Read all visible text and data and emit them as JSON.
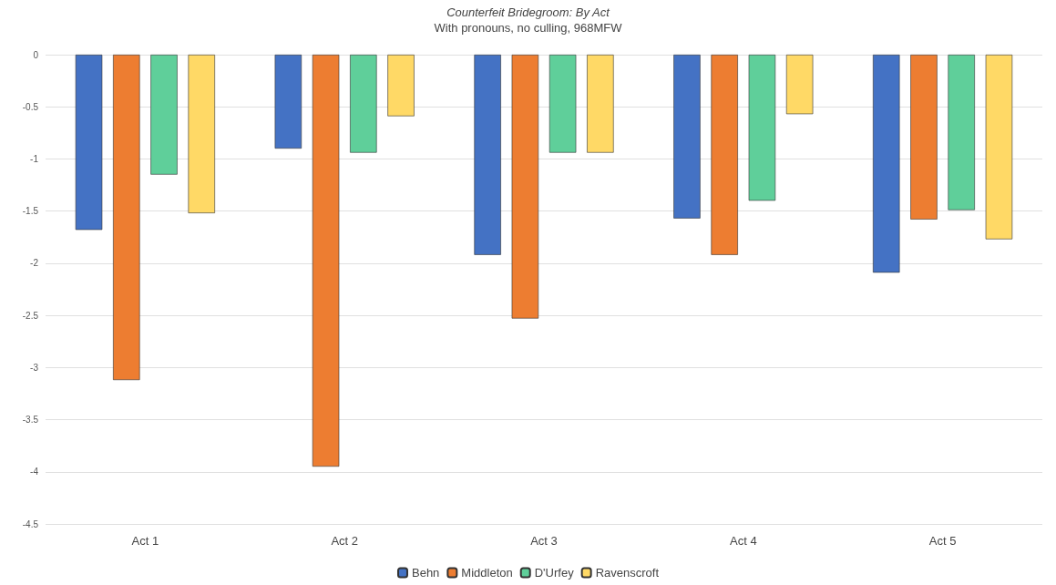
{
  "chart_data": {
    "type": "bar",
    "title": "Counterfeit Bridegroom: By Act",
    "subtitle": "With pronouns, no culling, 968MFW",
    "categories": [
      "Act 1",
      "Act 2",
      "Act 3",
      "Act 4",
      "Act 5"
    ],
    "series": [
      {
        "name": "Behn",
        "color": "#4472c4",
        "values": [
          -1.68,
          -0.9,
          -1.92,
          -1.57,
          -2.09
        ]
      },
      {
        "name": "Middleton",
        "color": "#ed7d31",
        "values": [
          -3.12,
          -3.95,
          -2.53,
          -1.92,
          -1.58
        ]
      },
      {
        "name": "D'Urfey",
        "color": "#5fcf9a",
        "values": [
          -1.15,
          -0.94,
          -0.94,
          -1.4,
          -1.49
        ]
      },
      {
        "name": "Ravenscroft",
        "color": "#ffd966",
        "values": [
          -1.52,
          -0.59,
          -0.94,
          -0.57,
          -1.77
        ]
      }
    ],
    "ylim": [
      -4.5,
      0
    ],
    "yticks": [
      0,
      -0.5,
      -1,
      -1.5,
      -2,
      -2.5,
      -3,
      -3.5,
      -4,
      -4.5
    ],
    "grid": "y",
    "legend": "bottom"
  }
}
